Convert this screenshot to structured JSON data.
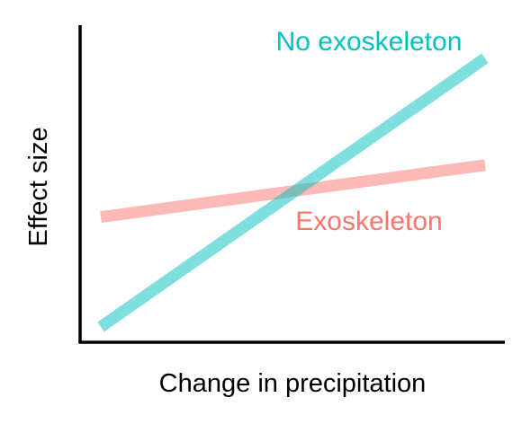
{
  "chart_data": {
    "type": "line",
    "title": "",
    "xlabel": "Change in precipitation",
    "ylabel": "Effect size",
    "grid": false,
    "legend": "inline labels",
    "axis_ticks": false,
    "series": [
      {
        "name": "No exoskeleton",
        "color": "#00C0C0",
        "x": [
          0,
          1
        ],
        "y": [
          0.05,
          0.93
        ]
      },
      {
        "name": "Exoskeleton",
        "color": "#F8766D",
        "x": [
          0,
          1
        ],
        "y": [
          0.41,
          0.58
        ]
      }
    ]
  }
}
